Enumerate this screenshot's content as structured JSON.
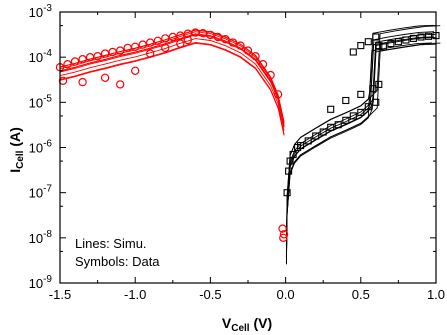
{
  "chart_data": {
    "type": "scatter",
    "title": "",
    "xlabel": {
      "main": "V",
      "sub": "Cell",
      "unit": " (V)"
    },
    "ylabel": {
      "main": "I",
      "sub": "Cell",
      "unit": " (A)"
    },
    "xlim": [
      -1.5,
      1.0
    ],
    "ylim_log10": [
      -9,
      -3
    ],
    "log_y": true,
    "x_ticks": [
      "-1.5",
      "-1.0",
      "-0.5",
      "0.0",
      "0.5",
      "1.0"
    ],
    "x_tick_values": [
      -1.5,
      -1.0,
      -0.5,
      0.0,
      0.5,
      1.0
    ],
    "y_tick_exponents": [
      -9,
      -8,
      -7,
      -6,
      -5,
      -4,
      -3
    ],
    "y_tick_base": "10",
    "grid": false,
    "annotations": [
      "Lines: Simu.",
      "Symbols: Data"
    ],
    "colors": {
      "reset": "#ff0000",
      "set": "#000000"
    },
    "series": [
      {
        "kind": "Data",
        "symbol": "circle",
        "color": "#ff0000",
        "points": [
          [
            -1.5,
            6e-05
          ],
          [
            -1.45,
            7e-05
          ],
          [
            -1.4,
            8e-05
          ],
          [
            -1.35,
            9e-05
          ],
          [
            -1.3,
            0.0001
          ],
          [
            -1.25,
            0.000105
          ],
          [
            -1.2,
            0.00012
          ],
          [
            -1.15,
            0.00013
          ],
          [
            -1.1,
            0.00014
          ],
          [
            -1.05,
            0.00016
          ],
          [
            -1.0,
            0.00017
          ],
          [
            -0.95,
            0.00019
          ],
          [
            -0.9,
            0.00021
          ],
          [
            -0.85,
            0.00023
          ],
          [
            -0.8,
            0.00026
          ],
          [
            -0.75,
            0.00028
          ],
          [
            -0.7,
            0.0003
          ],
          [
            -0.65,
            0.00033
          ],
          [
            -0.6,
            0.00035
          ],
          [
            -0.55,
            0.00034
          ],
          [
            -0.5,
            0.00031
          ],
          [
            -0.45,
            0.00028
          ],
          [
            -0.4,
            0.00025
          ],
          [
            -0.35,
            0.00021
          ],
          [
            -0.3,
            0.00018
          ],
          [
            -0.25,
            0.00014
          ],
          [
            -0.2,
            0.000105
          ],
          [
            -0.15,
            7e-05
          ],
          [
            -0.1,
            4e-05
          ],
          [
            -0.05,
            1.5e-05
          ],
          [
            -1.48,
            3e-05
          ],
          [
            -1.35,
            2.8e-05
          ],
          [
            -1.2,
            3.5e-05
          ],
          [
            -1.1,
            2.5e-05
          ],
          [
            -1.0,
            5e-05
          ],
          [
            -0.9,
            0.00012
          ],
          [
            -0.8,
            0.00016
          ],
          [
            -0.7,
            0.0002
          ],
          [
            -0.65,
            0.00024
          ],
          [
            -0.01,
            1.2e-08
          ],
          [
            -0.02,
            1.6e-08
          ],
          [
            -0.015,
            1e-08
          ]
        ]
      },
      {
        "kind": "Simu",
        "symbol": "line",
        "color": "#ff0000",
        "points": [
          [
            -1.5,
            5e-05
          ],
          [
            -1.4,
            6e-05
          ],
          [
            -1.3,
            7.5e-05
          ],
          [
            -1.2,
            9e-05
          ],
          [
            -1.1,
            0.00011
          ],
          [
            -1.0,
            0.00013
          ],
          [
            -0.9,
            0.00016
          ],
          [
            -0.8,
            0.0002
          ],
          [
            -0.7,
            0.00026
          ],
          [
            -0.6,
            0.00033
          ],
          [
            -0.5,
            0.0003
          ],
          [
            -0.4,
            0.00023
          ],
          [
            -0.3,
            0.00016
          ],
          [
            -0.2,
            9e-05
          ],
          [
            -0.1,
            3e-05
          ],
          [
            -0.05,
            1.2e-05
          ],
          [
            -0.01,
            3e-06
          ]
        ]
      },
      {
        "kind": "Data",
        "symbol": "square",
        "color": "#000000",
        "points": [
          [
            0.01,
            1e-07
          ],
          [
            0.02,
            3e-07
          ],
          [
            0.03,
            5e-07
          ],
          [
            0.05,
            7e-07
          ],
          [
            0.08,
            1e-06
          ],
          [
            0.1,
            1.1e-06
          ],
          [
            0.15,
            1.4e-06
          ],
          [
            0.2,
            1.8e-06
          ],
          [
            0.25,
            2.2e-06
          ],
          [
            0.3,
            2.8e-06
          ],
          [
            0.35,
            3.2e-06
          ],
          [
            0.4,
            4e-06
          ],
          [
            0.45,
            5e-06
          ],
          [
            0.5,
            6e-06
          ],
          [
            0.55,
            8e-06
          ],
          [
            0.6,
            1e-05
          ],
          [
            0.62,
            0.00018
          ],
          [
            0.65,
            0.00017
          ],
          [
            0.7,
            0.0002
          ],
          [
            0.75,
            0.00022
          ],
          [
            0.8,
            0.00024
          ],
          [
            0.85,
            0.00026
          ],
          [
            0.9,
            0.00028
          ],
          [
            0.95,
            0.00029
          ],
          [
            1.0,
            0.0003
          ],
          [
            0.5,
            0.00018
          ],
          [
            0.55,
            0.00022
          ],
          [
            0.45,
            0.00013
          ],
          [
            0.6,
            0.00028
          ],
          [
            0.4,
            1.1e-05
          ],
          [
            0.5,
            1.5e-05
          ],
          [
            0.3,
            7e-06
          ],
          [
            0.58,
            2e-05
          ],
          [
            0.62,
            2.5e-05
          ]
        ]
      },
      {
        "kind": "Simu",
        "symbol": "line",
        "color": "#000000",
        "points": [
          [
            0.005,
            4e-09
          ],
          [
            0.01,
            5e-08
          ],
          [
            0.03,
            4e-07
          ],
          [
            0.06,
            7e-07
          ],
          [
            0.1,
            1e-06
          ],
          [
            0.2,
            1.6e-06
          ],
          [
            0.3,
            2.5e-06
          ],
          [
            0.4,
            3.5e-06
          ],
          [
            0.5,
            5e-06
          ],
          [
            0.55,
            7e-06
          ],
          [
            0.58,
            1.1e-05
          ],
          [
            0.6,
            0.0002
          ],
          [
            0.7,
            0.00023
          ],
          [
            0.8,
            0.00026
          ],
          [
            0.9,
            0.00029
          ],
          [
            1.0,
            0.0003
          ]
        ]
      }
    ]
  }
}
